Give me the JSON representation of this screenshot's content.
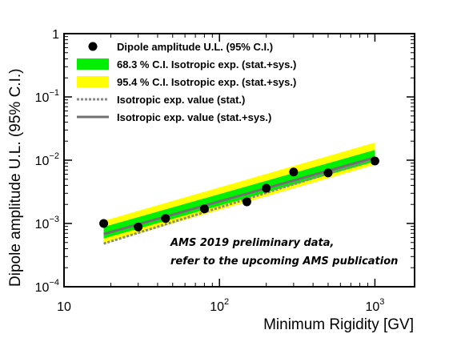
{
  "chart_data": {
    "type": "scatter",
    "x_scale": "log",
    "y_scale": "log",
    "xlim": [
      10,
      1800
    ],
    "ylim": [
      0.0001,
      1
    ],
    "xlabel": "Minimum Rigidity [GV]",
    "ylabel": "Dipole amplitude U.L. (95% C.I.)",
    "x_ticks": [
      {
        "value": 10,
        "base": "10",
        "exp": ""
      },
      {
        "value": 100,
        "base": "10",
        "exp": "2"
      },
      {
        "value": 1000,
        "base": "10",
        "exp": "3"
      }
    ],
    "y_ticks": [
      {
        "value": 1,
        "base": "1",
        "exp": ""
      },
      {
        "value": 0.1,
        "base": "10",
        "exp": "−1"
      },
      {
        "value": 0.01,
        "base": "10",
        "exp": "−2"
      },
      {
        "value": 0.001,
        "base": "10",
        "exp": "−3"
      },
      {
        "value": 0.0001,
        "base": "10",
        "exp": "−4"
      }
    ],
    "legend_position": "top-left",
    "grid": false,
    "series": [
      {
        "name": "Dipole amplitude U.L. (95% C.I.)",
        "kind": "points",
        "color": "#000000",
        "x": [
          18,
          30,
          45,
          80,
          150,
          200,
          300,
          500,
          1000
        ],
        "y": [
          0.001,
          0.00088,
          0.0012,
          0.0017,
          0.0022,
          0.0036,
          0.0065,
          0.0063,
          0.0097
        ]
      },
      {
        "name": "95.4 % C.I. Isotropic exp. (stat.+sys.)",
        "kind": "band",
        "color": "#ffff00",
        "x": [
          18,
          1000
        ],
        "y_low": [
          0.00048,
          0.0085
        ],
        "y_high": [
          0.0011,
          0.019
        ]
      },
      {
        "name": "68.3 % C.I. Isotropic exp. (stat.+sys.)",
        "kind": "band",
        "color": "#00ee00",
        "x": [
          18,
          1000
        ],
        "y_low": [
          0.00058,
          0.0095
        ],
        "y_high": [
          0.00088,
          0.0145
        ]
      },
      {
        "name": "Isotropic exp. value (stat.)",
        "kind": "line",
        "style": "dotted",
        "color": "#888888",
        "x": [
          18,
          1000
        ],
        "y": [
          0.00048,
          0.0105
        ]
      },
      {
        "name": "Isotropic exp. value (stat.+sys.)",
        "kind": "line",
        "style": "solid",
        "color": "#707070",
        "x": [
          18,
          1000
        ],
        "y": [
          0.00068,
          0.011
        ]
      }
    ],
    "legend_order": [
      0,
      2,
      1,
      3,
      4
    ],
    "annotation": [
      "AMS 2019 preliminary data,",
      "refer to the upcoming AMS publication"
    ]
  }
}
